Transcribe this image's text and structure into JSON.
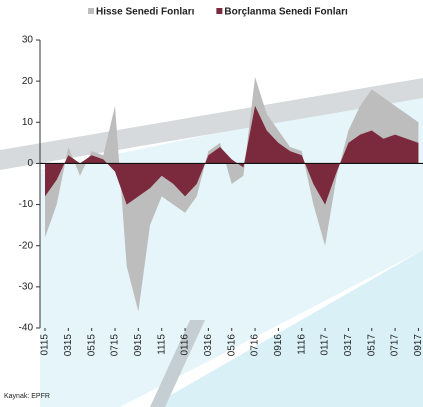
{
  "chart_data": {
    "type": "area",
    "source": "Kaynak: EPFR",
    "categories": [
      "0115",
      null,
      "0315",
      null,
      "0515",
      null,
      "0715",
      null,
      "0915",
      null,
      "1115",
      null,
      "0116",
      null,
      "0316",
      null,
      "0516",
      null,
      "0716",
      null,
      "0916",
      null,
      "1116",
      null,
      "0117",
      null,
      "0317",
      null,
      "0517",
      null,
      "0717",
      null,
      "0917"
    ],
    "series": [
      {
        "name": "Hisse Senedi Fonları",
        "color": "#bdbdbd",
        "values": [
          -18,
          -10,
          4,
          -3,
          3,
          2,
          14,
          -25,
          -36,
          -15,
          -8,
          -10,
          -12,
          -8,
          3,
          5,
          -5,
          -3,
          21,
          12,
          8,
          4,
          3,
          -10,
          -20,
          -3,
          8,
          14,
          18,
          16,
          14,
          12,
          10
        ]
      },
      {
        "name": "Borçlanma Senedi Fonları",
        "color": "#7a2a3c",
        "values": [
          -8,
          -4,
          2,
          0,
          2,
          1,
          -2,
          -10,
          -8,
          -6,
          -3,
          -5,
          -8,
          -5,
          2,
          4,
          1,
          -1,
          14,
          8,
          5,
          3,
          2,
          -5,
          -10,
          -2,
          5,
          7,
          8,
          6,
          7,
          6,
          5
        ]
      }
    ],
    "ylim": [
      -40,
      30
    ],
    "yticks": [
      -40,
      -30,
      -20,
      -10,
      0,
      10,
      20,
      30
    ]
  }
}
